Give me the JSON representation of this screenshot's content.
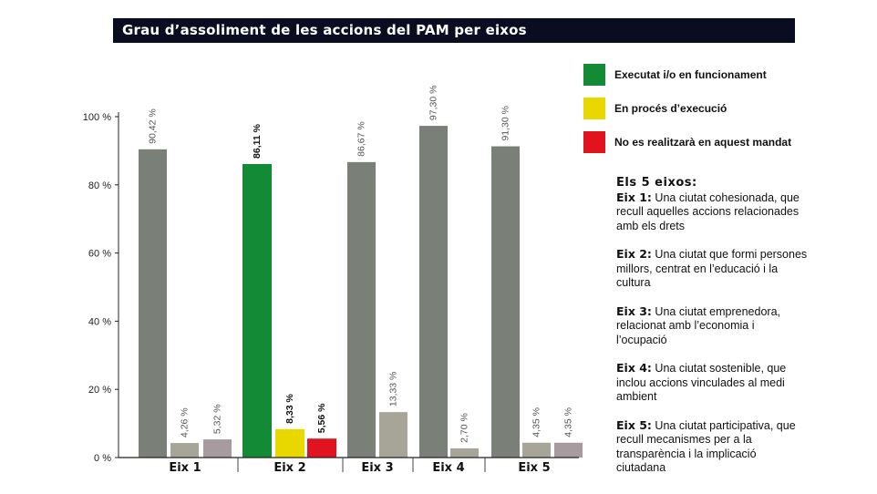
{
  "title": "Grau d’assoliment de les accions del PAM per eixos",
  "legend": [
    {
      "label": "Executat i/o en funcionament",
      "color": "#138a36"
    },
    {
      "label": "En procés d’execució",
      "color": "#e8d800"
    },
    {
      "label": "No es realitzarà en aquest mandat",
      "color": "#e0131f"
    }
  ],
  "axes_info": {
    "heading": "Els 5 eixos:",
    "entries": [
      {
        "key": "Eix 1:",
        "text": " Una ciutat cohesionada, que recull aquelles accions relacionades amb els drets"
      },
      {
        "key": "Eix 2:",
        "text": " Una ciutat que formi persones millors, centrat en l’educació i la cultura"
      },
      {
        "key": "Eix 3:",
        "text": " Una ciutat emprenedora, relacionat amb l’economia i l’ocupació"
      },
      {
        "key": "Eix 4:",
        "text": " Una ciutat sostenible, que inclou accions vinculades al medi ambient"
      },
      {
        "key": "Eix 5:",
        "text": " Una ciutat participativa, que recull mecanismes per a la transparència i la implicació ciutadana"
      }
    ]
  },
  "chart_data": {
    "type": "bar",
    "title": "Grau d’assoliment de les accions del PAM per eixos",
    "categories": [
      "Eix 1",
      "Eix 2",
      "Eix 3",
      "Eix 4",
      "Eix 5"
    ],
    "ylim": [
      0,
      100
    ],
    "yticks": [
      0,
      20,
      40,
      60,
      80,
      100
    ],
    "ytick_labels": [
      "0 %",
      "20 %",
      "40 %",
      "60 %",
      "80 %",
      "100 %"
    ],
    "grid": false,
    "legend_position": "right",
    "bars": [
      {
        "category": "Eix 1",
        "value": 90.42,
        "label": "90,42 %",
        "color": "#7a8078",
        "bold": false
      },
      {
        "category": "Eix 1",
        "value": 4.26,
        "label": "4,26 %",
        "color": "#a7a598",
        "bold": false
      },
      {
        "category": "Eix 1",
        "value": 5.32,
        "label": "5,32 %",
        "color": "#a89b9f",
        "bold": false
      },
      {
        "category": "Eix 2",
        "value": 86.11,
        "label": "86,11 %",
        "color": "#138a36",
        "bold": true
      },
      {
        "category": "Eix 2",
        "value": 8.33,
        "label": "8,33 %",
        "color": "#e8d800",
        "bold": true
      },
      {
        "category": "Eix 2",
        "value": 5.56,
        "label": "5,56 %",
        "color": "#e0131f",
        "bold": true
      },
      {
        "category": "Eix 3",
        "value": 86.67,
        "label": "86,67 %",
        "color": "#7a8078",
        "bold": false
      },
      {
        "category": "Eix 3",
        "value": 13.33,
        "label": "13,33 %",
        "color": "#a7a598",
        "bold": false
      },
      {
        "category": "Eix 4",
        "value": 97.3,
        "label": "97,30 %",
        "color": "#7a8078",
        "bold": false
      },
      {
        "category": "Eix 4",
        "value": 2.7,
        "label": "2,70 %",
        "color": "#a7a598",
        "bold": false
      },
      {
        "category": "Eix 5",
        "value": 91.3,
        "label": "91,30 %",
        "color": "#7a8078",
        "bold": false
      },
      {
        "category": "Eix 5",
        "value": 4.35,
        "label": "4,35 %",
        "color": "#a7a598",
        "bold": false
      },
      {
        "category": "Eix 5",
        "value": 4.35,
        "label": "4,35 %",
        "color": "#a89b9f",
        "bold": false
      }
    ]
  }
}
